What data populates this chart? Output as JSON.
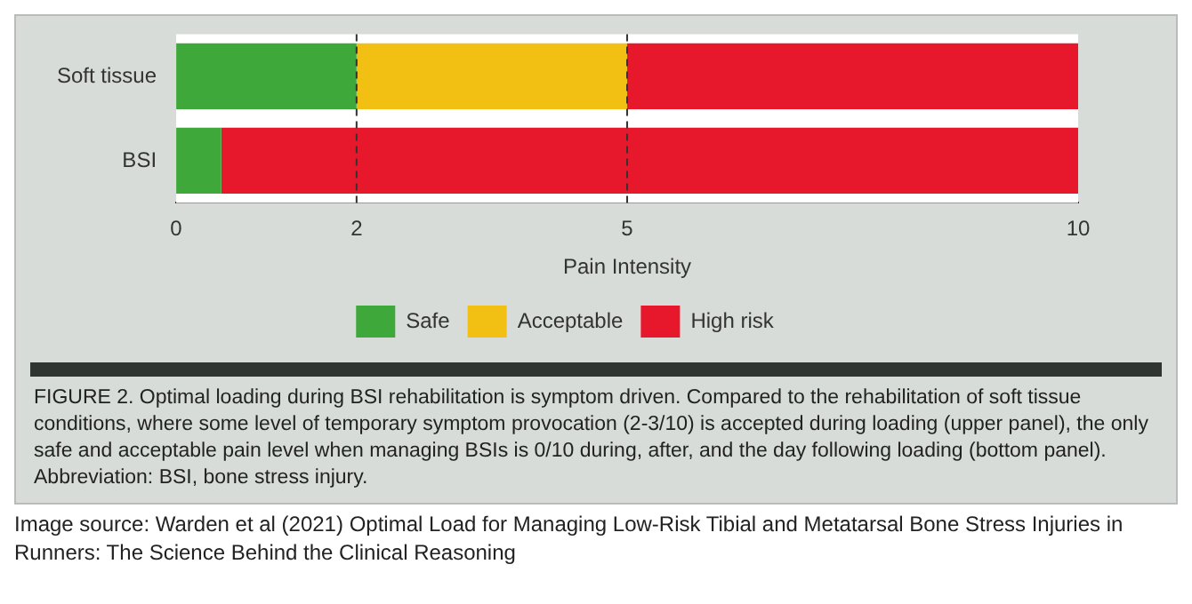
{
  "chart_data": {
    "type": "bar",
    "orientation": "horizontal",
    "stacked": true,
    "categories": [
      "Soft tissue",
      "BSI"
    ],
    "series": [
      {
        "name": "Safe",
        "color": "#3ea83a",
        "values": [
          2,
          0.5
        ]
      },
      {
        "name": "Acceptable",
        "color": "#f2c012",
        "values": [
          3,
          0
        ]
      },
      {
        "name": "High risk",
        "color": "#e8182c",
        "values": [
          5,
          9.5
        ]
      }
    ],
    "xlabel": "Pain Intensity",
    "xlim": [
      0,
      10
    ],
    "xticks": [
      0,
      2,
      5,
      10
    ],
    "ref_lines": [
      {
        "axis": "x",
        "value": 2,
        "label": null,
        "color": "#333333",
        "line_style": "dashed"
      },
      {
        "axis": "x",
        "value": 5,
        "label": null,
        "color": "#333333",
        "line_style": "dashed"
      }
    ],
    "grid": false,
    "legend": "bottom",
    "annotations": [
      "FIGURE 2. Optimal loading during BSI rehabilitation is symptom driven. Compared to the rehabilitation of soft tissue conditions, where some level of temporary symptom provocation (2-3/10) is accepted during loading (upper panel), the only safe and acceptable pain level when managing BSIs is 0/10 during, after, and the day following loading (bottom panel). Abbreviation: BSI, bone stress injury.",
      "Image source: Warden et al (2021) Optimal Load for Managing Low-Risk Tibial and Metatarsal Bone Stress Injuries in Runners: The Science Behind the Clinical Reasoning"
    ]
  }
}
